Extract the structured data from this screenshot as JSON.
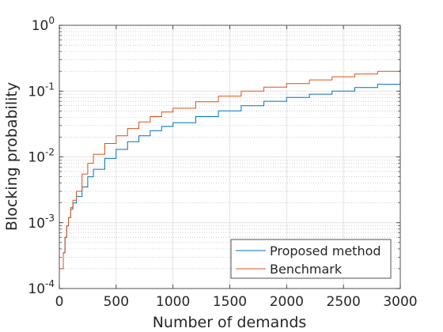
{
  "chart_data": {
    "type": "line",
    "title": "",
    "xlabel": "Number of demands",
    "ylabel": "Blocking probability",
    "xlim": [
      0,
      3000
    ],
    "ylim": [
      0.0001,
      1
    ],
    "yscale": "log",
    "grid": true,
    "minor_grid": true,
    "legend_position": "bottom-right",
    "x_ticks": [
      {
        "value": 0,
        "label": "0"
      },
      {
        "value": 500,
        "label": "500"
      },
      {
        "value": 1000,
        "label": "1000"
      },
      {
        "value": 1500,
        "label": "1500"
      },
      {
        "value": 2000,
        "label": "2000"
      },
      {
        "value": 2500,
        "label": "2500"
      },
      {
        "value": 3000,
        "label": "3000"
      }
    ],
    "y_ticks": [
      {
        "value": 0.0001,
        "base": "10",
        "exp": "-4"
      },
      {
        "value": 0.001,
        "base": "10",
        "exp": "-3"
      },
      {
        "value": 0.01,
        "base": "10",
        "exp": "-2"
      },
      {
        "value": 0.1,
        "base": "10",
        "exp": "-1"
      },
      {
        "value": 1,
        "base": "10",
        "exp": "0"
      }
    ],
    "series": [
      {
        "name": "Proposed method",
        "color": "#0072BD",
        "x": [
          20,
          35,
          50,
          65,
          80,
          100,
          120,
          150,
          200,
          250,
          300,
          400,
          500,
          600,
          700,
          800,
          900,
          1000,
          1200,
          1400,
          1600,
          1800,
          2000,
          2200,
          2400,
          2600,
          2800,
          3000
        ],
        "y": [
          0.0002,
          0.00035,
          0.0006,
          0.0009,
          0.0012,
          0.0016,
          0.002,
          0.0025,
          0.0035,
          0.005,
          0.0065,
          0.0095,
          0.013,
          0.017,
          0.021,
          0.025,
          0.029,
          0.033,
          0.041,
          0.05,
          0.06,
          0.07,
          0.08,
          0.09,
          0.1,
          0.113,
          0.127,
          0.142
        ]
      },
      {
        "name": "Benchmark",
        "color": "#D95319",
        "x": [
          20,
          35,
          50,
          65,
          80,
          100,
          120,
          150,
          200,
          250,
          300,
          400,
          500,
          600,
          700,
          800,
          900,
          1000,
          1200,
          1400,
          1600,
          1800,
          2000,
          2200,
          2400,
          2600,
          2800,
          3000
        ],
        "y": [
          0.0002,
          0.00035,
          0.0006,
          0.0009,
          0.0012,
          0.0017,
          0.0022,
          0.003,
          0.0055,
          0.008,
          0.011,
          0.016,
          0.021,
          0.027,
          0.034,
          0.041,
          0.048,
          0.055,
          0.069,
          0.084,
          0.1,
          0.115,
          0.13,
          0.148,
          0.165,
          0.182,
          0.2,
          0.22
        ]
      }
    ]
  }
}
